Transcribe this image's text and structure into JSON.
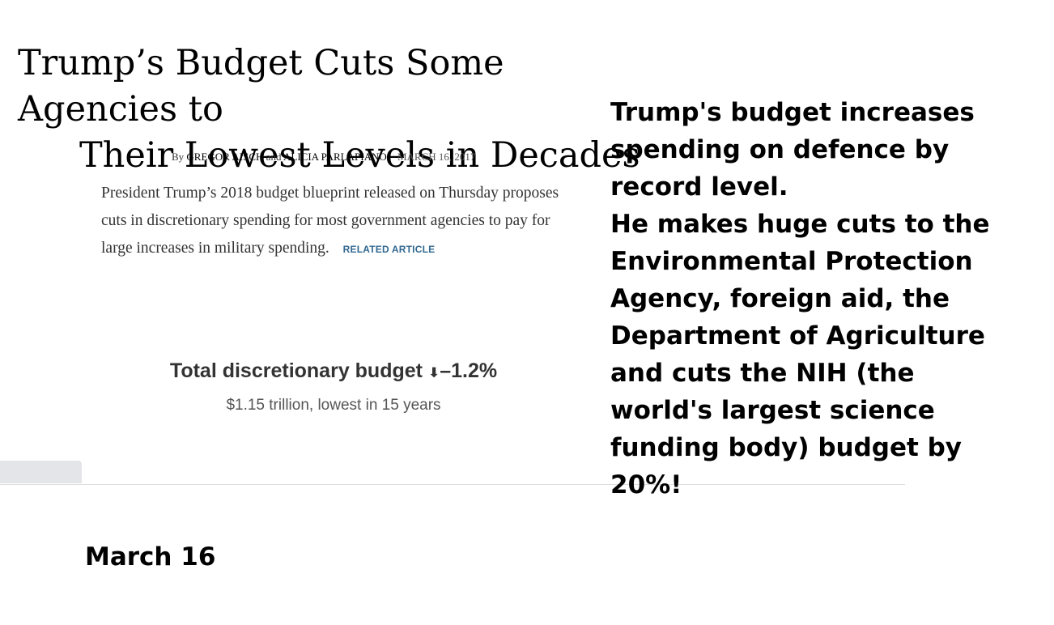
{
  "article": {
    "headline_line1": "Trump’s Budget Cuts Some Agencies to",
    "headline_line2": "Their Lowest Levels in Decades",
    "byline_prefix": "By",
    "author1": "GREGOR AISCH",
    "byline_and": "and",
    "author2": "ALICIA PARLAPIANO",
    "date": "MARCH 16, 2017",
    "summary": "President Trump’s 2018 budget blueprint released on Thursday proposes cuts in discretionary spending for most government agencies to pay for large increases in military spending.",
    "related_label": "RELATED ARTICLE",
    "budget_title": "Total discretionary budget",
    "budget_arrow": "⬇",
    "budget_change": "–1.2%",
    "budget_subtitle": "$1.15 trillion, lowest in 15 years"
  },
  "commentary": {
    "lines": [
      "Trump's budget increases",
      "spending on defence by",
      "record level.",
      "He makes huge cuts to the",
      "Environmental Protection",
      "Agency, foreign aid, the",
      "Department of Agriculture",
      "and cuts the NIH (the",
      "world's largest science",
      "funding body) budget by",
      "20%!"
    ]
  },
  "date_label": "March 16",
  "colors": {
    "link_blue": "#326891",
    "divider": "#dcdcdc",
    "tab_gray": "#e3e5e8"
  }
}
